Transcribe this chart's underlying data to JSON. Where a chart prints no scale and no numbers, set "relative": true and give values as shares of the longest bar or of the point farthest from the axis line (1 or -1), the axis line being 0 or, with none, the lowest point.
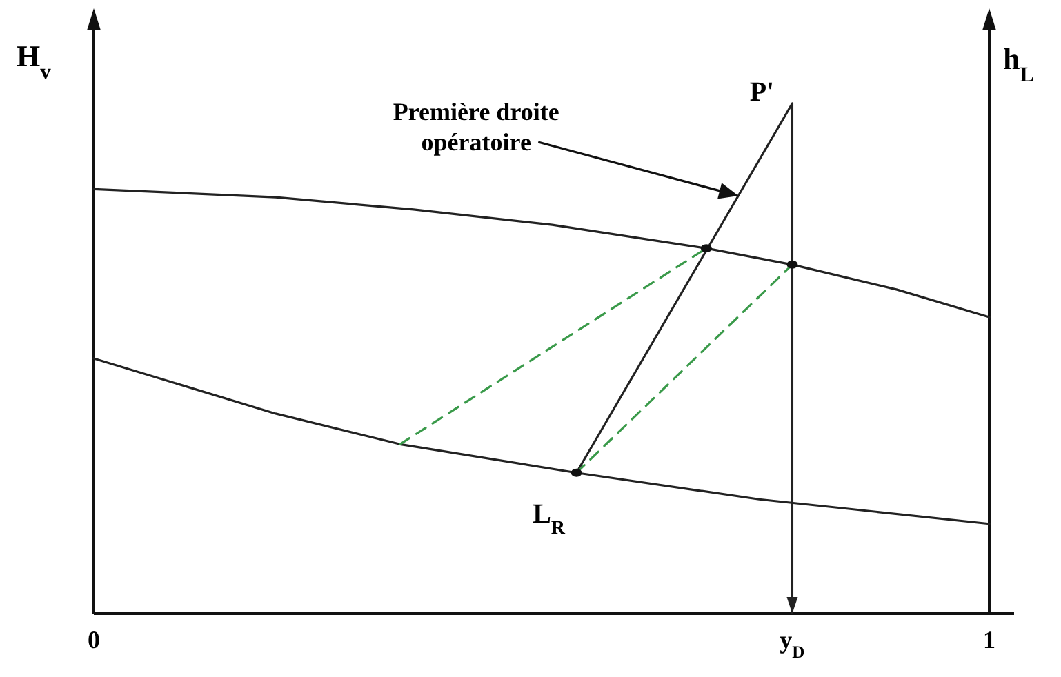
{
  "chart_data": {
    "type": "line",
    "relative": true,
    "ylabel": "H$_{v}$",
    "y2label": "h$_{L}$",
    "xlim": [
      0,
      1
    ],
    "xticks": [
      0,
      {
        "value": 0.78,
        "label": "y$_{D}$"
      },
      1
    ],
    "ref_lines": [
      {
        "axis": "x",
        "value": 0.78,
        "color": "#222222"
      }
    ],
    "annotations": [
      "Première droite opératoire",
      {
        "text": "P'",
        "x": 0.78,
        "y": 1
      },
      {
        "text": "L$_{R}$",
        "x": 0.539,
        "y": 0.276
      }
    ],
    "series": [
      {
        "color": "#222222",
        "x": [
          0,
          0.203,
          0.357,
          0.512,
          0.684,
          0.78,
          0.897,
          1
        ],
        "values": [
          0.832,
          0.816,
          0.792,
          0.762,
          0.716,
          0.684,
          0.635,
          0.581
        ]
      },
      {
        "color": "#222222",
        "x": [
          0,
          0.203,
          0.342,
          0.539,
          0.743,
          1
        ],
        "values": [
          0.5,
          0.392,
          0.332,
          0.276,
          0.224,
          0.176
        ]
      },
      {
        "color": "#222222",
        "x": [
          0.539,
          0.78
        ],
        "values": [
          0.276,
          1
        ]
      },
      {
        "color": "#3a9a4a",
        "line_style": "dashed",
        "x": [
          0.342,
          0.684
        ],
        "values": [
          0.332,
          0.716
        ]
      },
      {
        "color": "#3a9a4a",
        "line_style": "dashed",
        "x": [
          0.539,
          0.78
        ],
        "values": [
          0.276,
          0.684
        ]
      },
      {
        "type": "scatter",
        "color": "#111111",
        "marker": "circle",
        "x": [
          0.684,
          0.78,
          0.539
        ],
        "values": [
          0.716,
          0.684,
          0.276
        ]
      }
    ]
  }
}
